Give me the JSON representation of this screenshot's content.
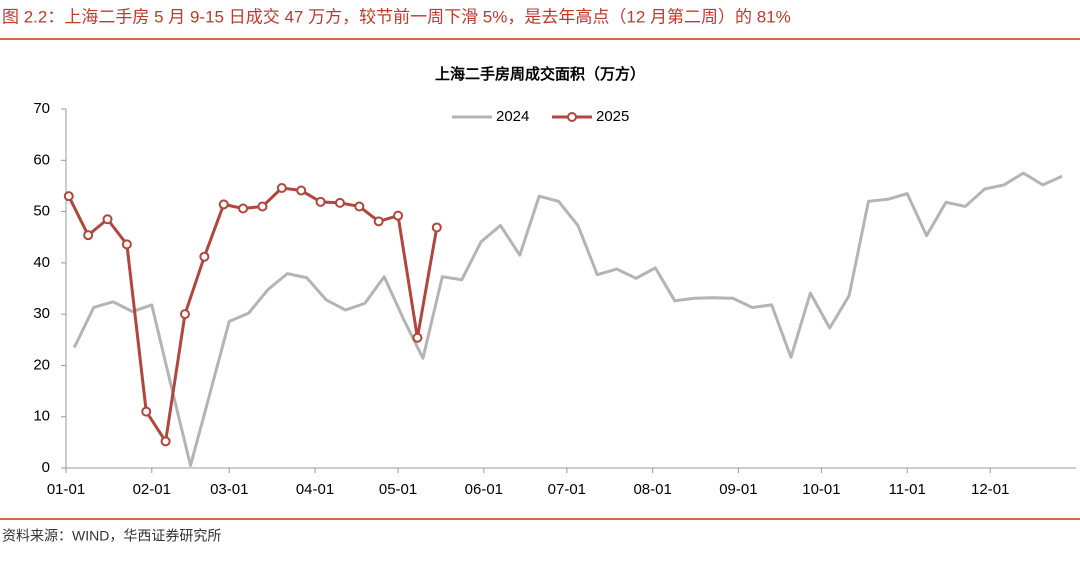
{
  "header": "图 2.2：上海二手房 5 月 9-15 日成交 47 万方，较节前一周下滑 5%，是去年高点（12 月第二周）的 81%",
  "source": "资料来源：WIND，华西证券研究所",
  "chart_data": {
    "type": "line",
    "title": "上海二手房周成交面积（万方）",
    "xlim": [
      0,
      365
    ],
    "xticks": [
      {
        "value": 0,
        "label": "01-01"
      },
      {
        "value": 31,
        "label": "02-01"
      },
      {
        "value": 59,
        "label": "03-01"
      },
      {
        "value": 90,
        "label": "04-01"
      },
      {
        "value": 120,
        "label": "05-01"
      },
      {
        "value": 151,
        "label": "06-01"
      },
      {
        "value": 181,
        "label": "07-01"
      },
      {
        "value": 212,
        "label": "08-01"
      },
      {
        "value": 243,
        "label": "09-01"
      },
      {
        "value": 273,
        "label": "10-01"
      },
      {
        "value": 304,
        "label": "11-01"
      },
      {
        "value": 334,
        "label": "12-01"
      }
    ],
    "ylim": [
      0,
      70
    ],
    "yticks": [
      0,
      10,
      20,
      30,
      40,
      50,
      60,
      70
    ],
    "grid": false,
    "legend": "top",
    "series": [
      {
        "name": "2024",
        "color": "#b4b4b4",
        "markers": false,
        "x": [
          3,
          10,
          17,
          24,
          31,
          38,
          45,
          52,
          59,
          66,
          73,
          80,
          87,
          94,
          101,
          108,
          115,
          122,
          129,
          136,
          143,
          150,
          157,
          164,
          171,
          178,
          185,
          192,
          199,
          206,
          213,
          220,
          227,
          234,
          241,
          248,
          255,
          262,
          269,
          276,
          283,
          290,
          297,
          304,
          311,
          318,
          325,
          332,
          339,
          346,
          353,
          360
        ],
        "values": [
          23.5,
          31.3,
          32.4,
          30.5,
          31.8,
          16,
          0.5,
          14.5,
          28.6,
          30.2,
          34.8,
          37.9,
          37.1,
          32.8,
          30.8,
          32.1,
          37.3,
          29,
          21.4,
          37.3,
          36.7,
          44.1,
          47.3,
          41.5,
          53,
          52,
          47.3,
          37.7,
          38.8,
          37,
          39,
          32.6,
          33.1,
          33.2,
          33.1,
          31.3,
          31.8,
          21.6,
          34.1,
          27.3,
          33.6,
          52,
          52.4,
          53.5,
          45.3,
          51.8,
          51,
          54.4,
          55.2,
          57.5,
          55.2,
          56.9
        ]
      },
      {
        "name": "2025",
        "color": "#b0463c",
        "markers": true,
        "x": [
          1,
          8,
          15,
          22,
          29,
          36,
          43,
          50,
          57,
          64,
          71,
          78,
          85,
          92,
          99,
          106,
          113,
          120,
          127,
          134
        ],
        "values": [
          53,
          45.4,
          48.5,
          43.6,
          11,
          5.2,
          30,
          41.2,
          51.4,
          50.6,
          51,
          54.6,
          54.1,
          51.9,
          51.7,
          51,
          48.1,
          49.2,
          25.4,
          46.9
        ]
      }
    ]
  }
}
